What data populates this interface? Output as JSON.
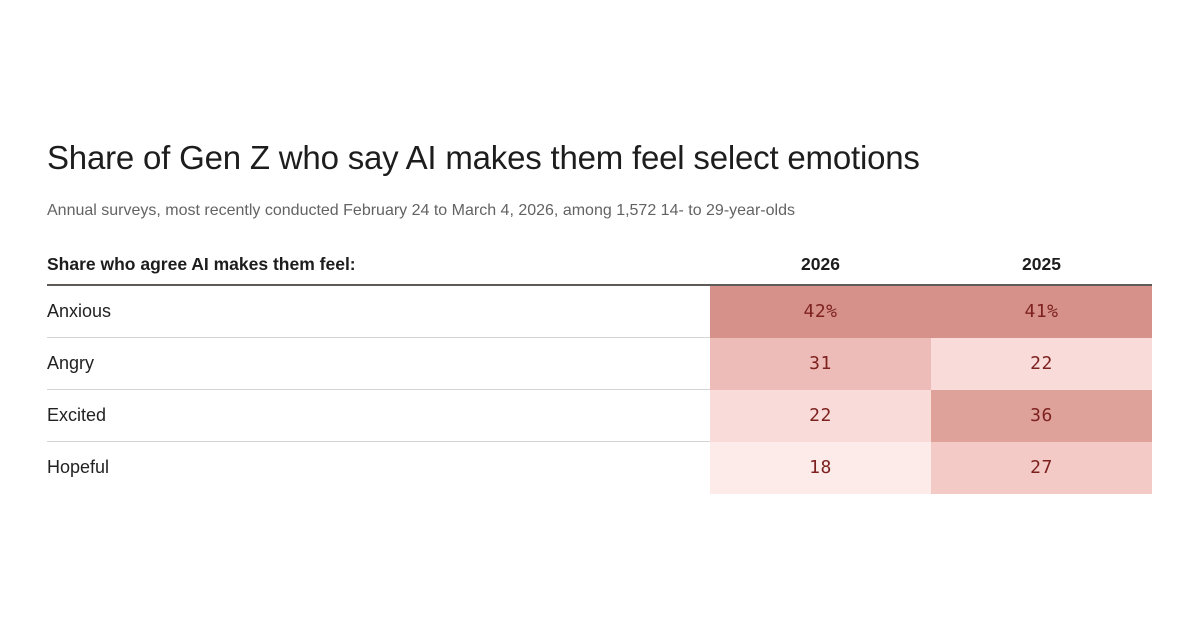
{
  "header": {
    "title": "Share of Gen Z who say AI makes them feel select emotions",
    "subtitle": "Annual surveys, most recently conducted February 24 to March 4, 2026, among 1,572 14- to 29-year-olds"
  },
  "table": {
    "label_header": "Share who agree AI makes them feel:",
    "col_2026": "2026",
    "col_2025": "2025",
    "rows": [
      {
        "label": "Anxious",
        "v2026": "42%",
        "v2025": "41%",
        "c2026": "#d6918a",
        "c2025": "#d6918a"
      },
      {
        "label": "Angry",
        "v2026": "31",
        "v2025": "22",
        "c2026": "#eebcb8",
        "c2025": "#f9dcd9"
      },
      {
        "label": "Excited",
        "v2026": "22",
        "v2025": "36",
        "c2026": "#f9dcd9",
        "c2025": "#dfa29b"
      },
      {
        "label": "Hopeful",
        "v2026": "18",
        "v2025": "27",
        "c2026": "#fcebe9",
        "c2025": "#f4cac6"
      }
    ]
  },
  "colors": {
    "value_text": "#7d211f",
    "heat_scale_max": "#d6918a",
    "heat_scale_min": "#fcebe9",
    "header_rule": "#5e5a58",
    "row_divider": "#d4d4d4"
  },
  "chart_data": {
    "type": "heatmap",
    "title": "Share of Gen Z who say AI makes them feel select emotions",
    "subtitle": "Annual surveys, most recently conducted February 24 to March 4, 2026, among 1,572 14- to 29-year-olds",
    "row_header": "Share who agree AI makes them feel:",
    "categories": [
      "Anxious",
      "Angry",
      "Excited",
      "Hopeful"
    ],
    "series": [
      {
        "name": "2026",
        "values": [
          42,
          31,
          22,
          18
        ]
      },
      {
        "name": "2025",
        "values": [
          41,
          22,
          36,
          27
        ]
      }
    ],
    "unit": "percent",
    "value_labels": [
      [
        "42%",
        "41%"
      ],
      [
        "31",
        "22"
      ],
      [
        "22",
        "36"
      ],
      [
        "18",
        "27"
      ]
    ],
    "value_range_for_color_scale": [
      18,
      42
    ],
    "legend_position": "none",
    "grid": "row-dividers-only"
  }
}
